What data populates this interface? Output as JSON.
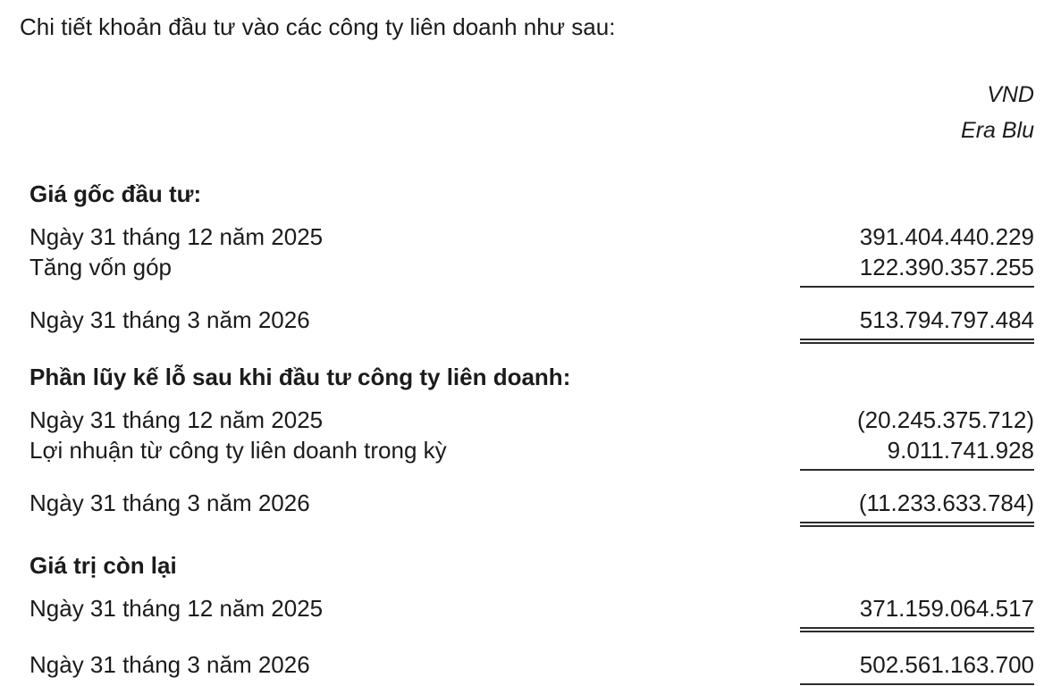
{
  "document": {
    "intro": "Chi tiết khoản đầu tư vào các công ty liên doanh như sau:",
    "unit_header": {
      "currency": "VND",
      "entity": "Era Blu"
    },
    "sections": [
      {
        "heading": "Giá gốc đầu tư:",
        "rows": [
          {
            "label": "Ngày 31 tháng 12 năm 2025",
            "value": "391.404.440.229"
          },
          {
            "label": "Tăng vốn góp",
            "value": "122.390.357.255"
          },
          {
            "label": "Ngày 31 tháng 3 năm 2026",
            "value": "513.794.797.484"
          }
        ]
      },
      {
        "heading": "Phần lũy kế lỗ sau khi đầu tư công ty liên doanh:",
        "rows": [
          {
            "label": "Ngày 31 tháng 12 năm 2025",
            "value": "(20.245.375.712)"
          },
          {
            "label": "Lợi nhuận từ công ty liên doanh trong kỳ",
            "value": "9.011.741.928"
          },
          {
            "label": "Ngày 31 tháng 3 năm 2026",
            "value": "(11.233.633.784)"
          }
        ]
      },
      {
        "heading": "Giá trị còn lại",
        "rows": [
          {
            "label": "Ngày 31 tháng 12 năm 2025",
            "value": "371.159.064.517"
          },
          {
            "label": "Ngày 31 tháng 3 năm 2026",
            "value": "502.561.163.700"
          }
        ]
      }
    ]
  }
}
